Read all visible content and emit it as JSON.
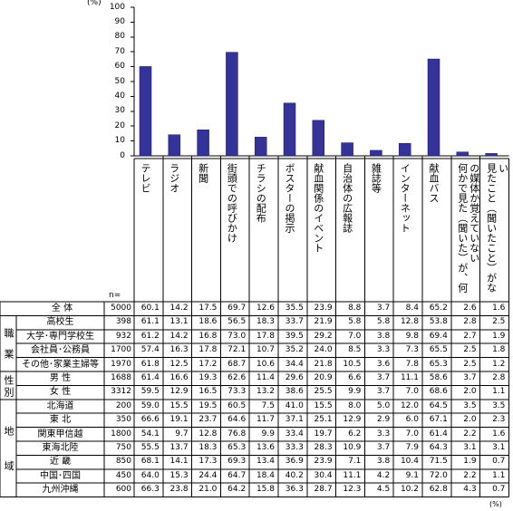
{
  "chart_data": {
    "type": "bar",
    "y_unit": "(%)",
    "categories": [
      "テレビ",
      "ラジオ",
      "新聞",
      "街頭での呼びかけ",
      "チラシの配布",
      "ポスターの掲示",
      "献血関係のイベント",
      "自治体の広報誌",
      "雑誌等",
      "インターネット",
      "献血バス",
      "何かで見た（聞いた）が、何の媒体か覚えていない",
      "見たこと（聞いたこと）がない"
    ],
    "values": [
      60.1,
      14.2,
      17.5,
      69.7,
      12.6,
      35.5,
      23.9,
      8.8,
      3.7,
      8.4,
      65.2,
      2.6,
      1.6
    ],
    "color": "#333399",
    "ylim": [
      0,
      100
    ],
    "yticks": [
      0,
      10,
      20,
      30,
      40,
      50,
      60,
      70,
      80,
      90,
      100
    ]
  },
  "table": {
    "n_header": "n=",
    "unit": "(%)",
    "total": {
      "label": "全 体",
      "n": 5000
    },
    "groups": [
      {
        "label": "職業",
        "rows": [
          {
            "label": "高校生",
            "n": 398,
            "values": [
              "61.1",
              "13.1",
              "18.6",
              "56.5",
              "18.3",
              "33.7",
              "21.9",
              "5.8",
              "5.8",
              "12.8",
              "53.8",
              "2.8",
              "2.5"
            ]
          },
          {
            "label": "大学･専門学校生",
            "n": 932,
            "values": [
              "61.2",
              "14.2",
              "16.8",
              "73.0",
              "17.8",
              "39.5",
              "29.2",
              "7.0",
              "3.8",
              "9.8",
              "69.4",
              "2.7",
              "1.9"
            ]
          },
          {
            "label": "会社員･公務員",
            "n": 1700,
            "values": [
              "57.4",
              "16.3",
              "17.8",
              "72.1",
              "10.7",
              "35.2",
              "24.0",
              "8.5",
              "3.3",
              "7.3",
              "65.5",
              "2.5",
              "1.8"
            ]
          },
          {
            "label": "その他･家業主婦等",
            "n": 1970,
            "values": [
              "61.8",
              "12.5",
              "17.2",
              "68.7",
              "10.6",
              "34.4",
              "21.8",
              "10.5",
              "3.6",
              "7.8",
              "65.3",
              "2.5",
              "1.2"
            ]
          }
        ]
      },
      {
        "label": "性別",
        "rows": [
          {
            "label": "男 性",
            "n": 1688,
            "values": [
              "61.4",
              "16.6",
              "19.3",
              "62.6",
              "11.4",
              "29.6",
              "20.9",
              "6.6",
              "3.7",
              "11.1",
              "58.6",
              "3.7",
              "2.8"
            ]
          },
          {
            "label": "女 性",
            "n": 3312,
            "values": [
              "59.5",
              "12.9",
              "16.5",
              "73.3",
              "13.2",
              "38.6",
              "25.5",
              "9.9",
              "3.7",
              "7.0",
              "68.6",
              "2.0",
              "1.1"
            ]
          }
        ]
      },
      {
        "label": "地域",
        "rows": [
          {
            "label": "北海道",
            "n": 200,
            "values": [
              "59.0",
              "15.5",
              "19.5",
              "60.5",
              "7.5",
              "41.0",
              "15.5",
              "8.0",
              "5.0",
              "12.0",
              "64.5",
              "3.5",
              "3.5"
            ]
          },
          {
            "label": "東 北",
            "n": 350,
            "values": [
              "66.6",
              "19.1",
              "23.7",
              "64.6",
              "11.7",
              "37.1",
              "25.1",
              "12.9",
              "2.9",
              "6.0",
              "67.1",
              "2.0",
              "2.3"
            ]
          },
          {
            "label": "関東甲信越",
            "n": 1800,
            "values": [
              "54.1",
              "9.7",
              "12.8",
              "76.8",
              "9.9",
              "33.4",
              "19.7",
              "6.2",
              "3.3",
              "7.0",
              "61.4",
              "2.2",
              "1.6"
            ]
          },
          {
            "label": "東海北陸",
            "n": 750,
            "values": [
              "55.5",
              "13.7",
              "18.3",
              "65.3",
              "13.6",
              "33.3",
              "28.3",
              "10.9",
              "3.7",
              "7.9",
              "64.3",
              "3.1",
              "3.1"
            ]
          },
          {
            "label": "近 畿",
            "n": 850,
            "values": [
              "68.1",
              "14.1",
              "17.3",
              "69.3",
              "13.4",
              "36.9",
              "23.9",
              "7.1",
              "3.8",
              "10.4",
              "71.5",
              "1.9",
              "0.7"
            ]
          },
          {
            "label": "中国･四国",
            "n": 450,
            "values": [
              "64.0",
              "15.3",
              "24.4",
              "64.7",
              "18.4",
              "40.2",
              "30.4",
              "11.1",
              "4.2",
              "9.1",
              "72.0",
              "2.2",
              "1.1"
            ]
          },
          {
            "label": "九州沖縄",
            "n": 600,
            "values": [
              "66.3",
              "23.8",
              "21.0",
              "64.2",
              "15.8",
              "36.3",
              "28.7",
              "12.3",
              "4.5",
              "10.2",
              "62.8",
              "4.3",
              "0.7"
            ]
          }
        ]
      }
    ]
  }
}
